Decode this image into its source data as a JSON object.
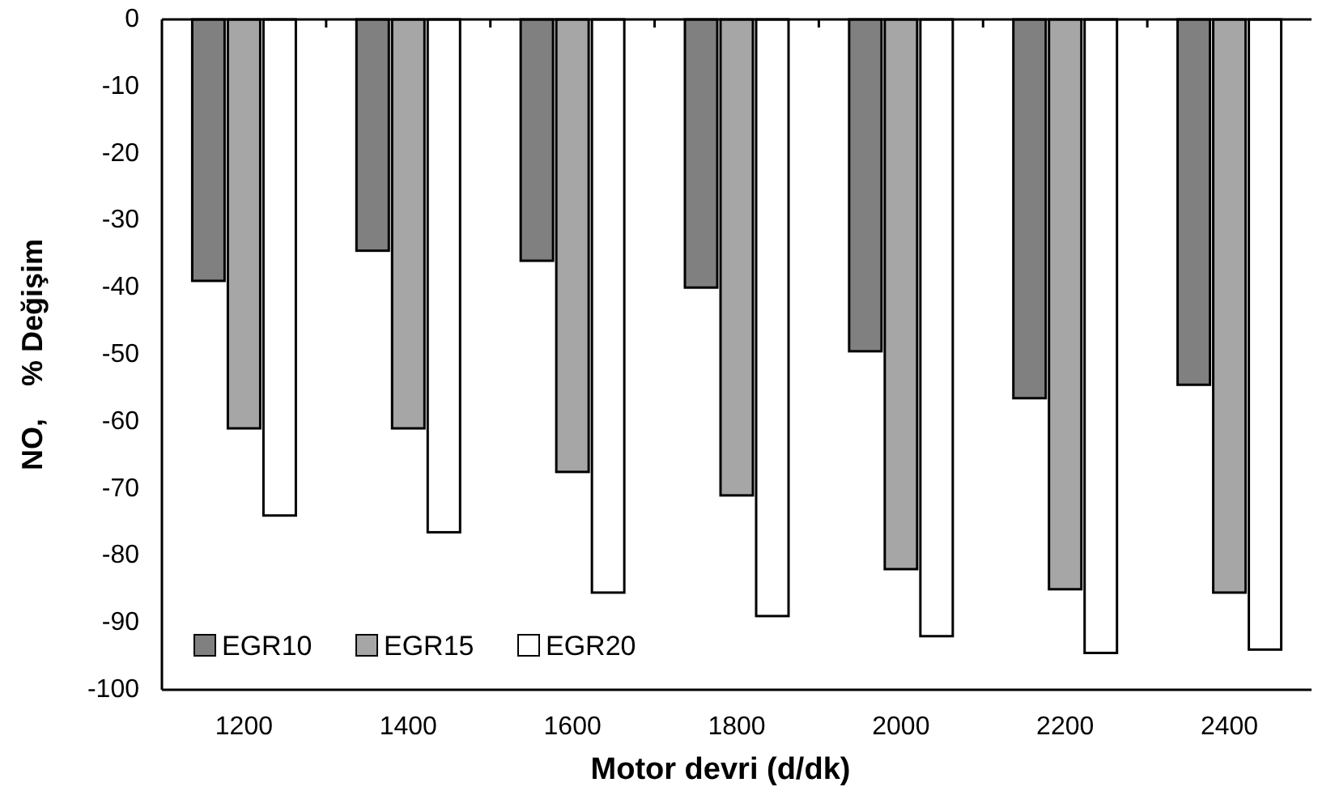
{
  "chart_data": {
    "type": "bar",
    "xlabel": "Motor devri (d/dk)",
    "ylabel": "NO,    % Değişim",
    "categories": [
      "1200",
      "1400",
      "1600",
      "1800",
      "2000",
      "2200",
      "2400"
    ],
    "series": [
      {
        "name": "EGR10",
        "color": "#808080",
        "values": [
          -39,
          -34.5,
          -36,
          -40,
          -49.5,
          -56.5,
          -54.5
        ]
      },
      {
        "name": "EGR15",
        "color": "#a6a6a6",
        "values": [
          -61,
          -61,
          -67.5,
          -71,
          -82,
          -85,
          -85.5
        ]
      },
      {
        "name": "EGR20",
        "color": "#ffffff",
        "values": [
          -74,
          -76.5,
          -85.5,
          -89,
          -92,
          -94.5,
          -94
        ]
      }
    ],
    "ylim": [
      -100,
      0
    ],
    "yticks": [
      0,
      -10,
      -20,
      -30,
      -40,
      -50,
      -60,
      -70,
      -80,
      -90,
      -100
    ],
    "grid": false,
    "legend": "bottom left"
  }
}
